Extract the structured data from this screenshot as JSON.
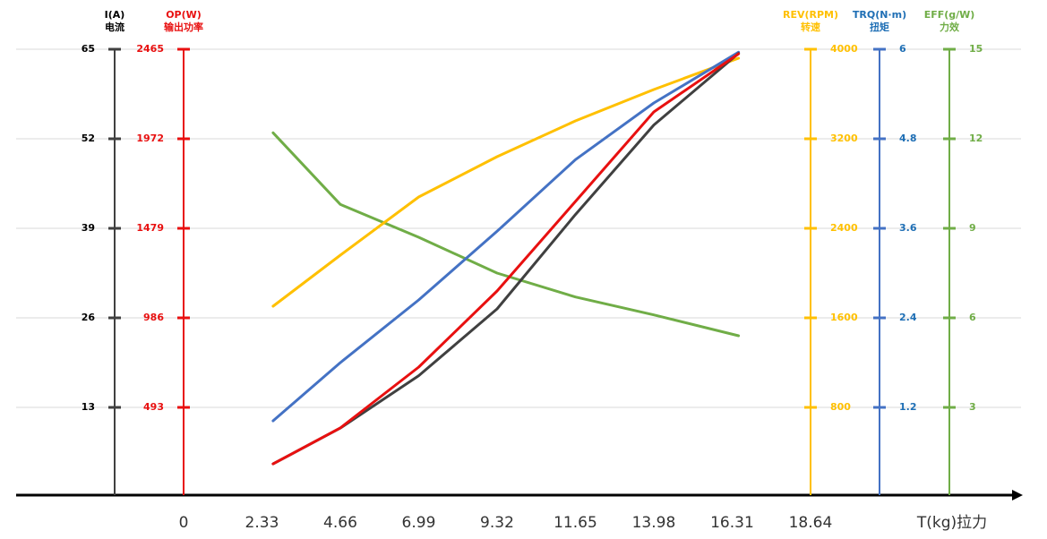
{
  "chart_data": {
    "type": "line",
    "x": [
      2.66,
      4.66,
      6.99,
      9.32,
      11.65,
      13.98,
      16.5
    ],
    "xlim": [
      -4.98,
      24.9
    ],
    "xticks": [
      0,
      2.33,
      4.66,
      6.99,
      9.32,
      11.65,
      13.98,
      16.31,
      18.64
    ],
    "xlabel": "T(kg)拉力",
    "grid": true,
    "series": [
      {
        "name": "I(A)",
        "subtitle": "电流",
        "color": "#000000",
        "ylim": [
          0,
          65
        ],
        "yticks": [
          13,
          26,
          39,
          52,
          65
        ],
        "values": [
          4.8,
          10,
          17.6,
          27.3,
          41,
          54,
          64.4
        ],
        "line_color": "#404040"
      },
      {
        "name": "OP(W)",
        "subtitle": "输出功率",
        "color": "#e81010",
        "ylim": [
          0,
          2465
        ],
        "yticks": [
          493,
          986,
          1479,
          1972,
          2465
        ],
        "values": [
          182,
          380,
          715,
          1134,
          1627,
          2120,
          2440
        ],
        "line_color": "#e81010"
      },
      {
        "name": "REV(RPM)",
        "subtitle": "转速",
        "color": "#ffc000",
        "ylim": [
          0,
          4000
        ],
        "yticks": [
          800,
          1600,
          2400,
          3200,
          4000
        ],
        "values": [
          1704,
          2160,
          2680,
          3040,
          3360,
          3640,
          3920
        ],
        "line_color": "#ffc000"
      },
      {
        "name": "TRQ(N·m)",
        "subtitle": "扭矩",
        "color": "#1f6fb5",
        "ylim": [
          0,
          6
        ],
        "yticks": [
          1.2,
          2.4,
          3.6,
          4.8,
          6
        ],
        "values": [
          1.02,
          1.8,
          2.64,
          3.56,
          4.52,
          5.28,
          5.96
        ],
        "line_color": "#4472c4"
      },
      {
        "name": "EFF(g/W)",
        "subtitle": "力效",
        "color": "#70ad47",
        "ylim": [
          0,
          15
        ],
        "yticks": [
          3,
          6,
          9,
          12,
          15
        ],
        "values": [
          12.2,
          9.8,
          8.7,
          7.5,
          6.7,
          6.1,
          5.4
        ],
        "line_color": "#70ad47"
      }
    ]
  }
}
